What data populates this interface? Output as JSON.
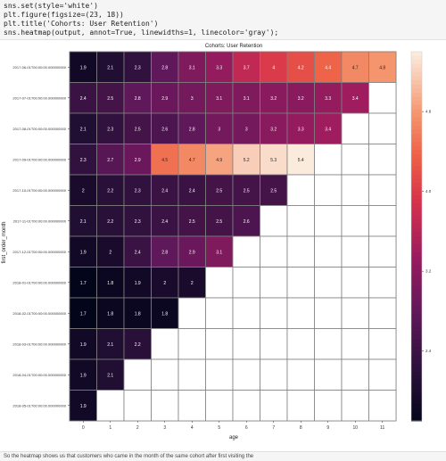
{
  "code": {
    "lines": [
      "sns.set(style='white')",
      "plt.figure(figsize=(23, 18))",
      "plt.title('Cohorts: User Retention')",
      "sns.heatmap(output, annot=True, linewidths=1, linecolor='gray');"
    ]
  },
  "bottom_text": "So the heatmap shows us that customers who came in the month of the same cohort after first visiting the",
  "chart_data": {
    "type": "heatmap",
    "title": "Cohorts: User Retention",
    "xlabel": "age",
    "ylabel": "first_order_month",
    "x": [
      "0",
      "1",
      "2",
      "3",
      "4",
      "5",
      "6",
      "7",
      "8",
      "9",
      "10",
      "11"
    ],
    "y": [
      "2017-06-01T00:00:00.000000000",
      "2017-07-01T00:00:00.000000000",
      "2017-08-01T00:00:00.000000000",
      "2017-09-01T00:00:00.000000000",
      "2017-10-01T00:00:00.000000000",
      "2017-11-01T00:00:00.000000000",
      "2017-12-01T00:00:00.000000000",
      "2018-01-01T00:00:00.000000000",
      "2018-02-01T00:00:00.000000000",
      "2018-03-01T00:00:00.000000000",
      "2018-04-01T00:00:00.000000000",
      "2018-05-01T00:00:00.000000000"
    ],
    "values": [
      [
        1.9,
        2.1,
        2.3,
        2.8,
        3.1,
        3.3,
        3.7,
        4,
        4.2,
        4.4,
        4.7,
        4.8
      ],
      [
        2.4,
        2.5,
        2.8,
        2.9,
        3,
        3.1,
        3.1,
        3.2,
        3.2,
        3.3,
        3.4,
        null
      ],
      [
        2.1,
        2.3,
        2.5,
        2.6,
        2.8,
        3,
        3,
        3.2,
        3.3,
        3.4,
        null,
        null
      ],
      [
        2.3,
        2.7,
        2.9,
        4.5,
        4.7,
        4.9,
        5.2,
        5.3,
        5.4,
        null,
        null,
        null
      ],
      [
        2,
        2.2,
        2.3,
        2.4,
        2.4,
        2.5,
        2.5,
        2.5,
        null,
        null,
        null,
        null
      ],
      [
        2.1,
        2.2,
        2.3,
        2.4,
        2.5,
        2.5,
        2.6,
        null,
        null,
        null,
        null,
        null
      ],
      [
        1.9,
        2,
        2.4,
        2.8,
        2.9,
        3.1,
        null,
        null,
        null,
        null,
        null,
        null
      ],
      [
        1.7,
        1.8,
        1.9,
        2,
        2,
        null,
        null,
        null,
        null,
        null,
        null,
        null
      ],
      [
        1.7,
        1.8,
        1.8,
        1.8,
        null,
        null,
        null,
        null,
        null,
        null,
        null,
        null
      ],
      [
        1.9,
        2.1,
        2.2,
        null,
        null,
        null,
        null,
        null,
        null,
        null,
        null,
        null
      ],
      [
        1.9,
        2.1,
        null,
        null,
        null,
        null,
        null,
        null,
        null,
        null,
        null,
        null
      ],
      [
        1.9,
        null,
        null,
        null,
        null,
        null,
        null,
        null,
        null,
        null,
        null,
        null
      ]
    ],
    "vmin": 1.7,
    "vmax": 5.4,
    "colorbar_ticks": [
      2.4,
      3.2,
      4.0,
      4.8
    ],
    "colormap": "rocket",
    "grid_line_color": "#808080",
    "empty_cell_color": "#ffffff"
  }
}
